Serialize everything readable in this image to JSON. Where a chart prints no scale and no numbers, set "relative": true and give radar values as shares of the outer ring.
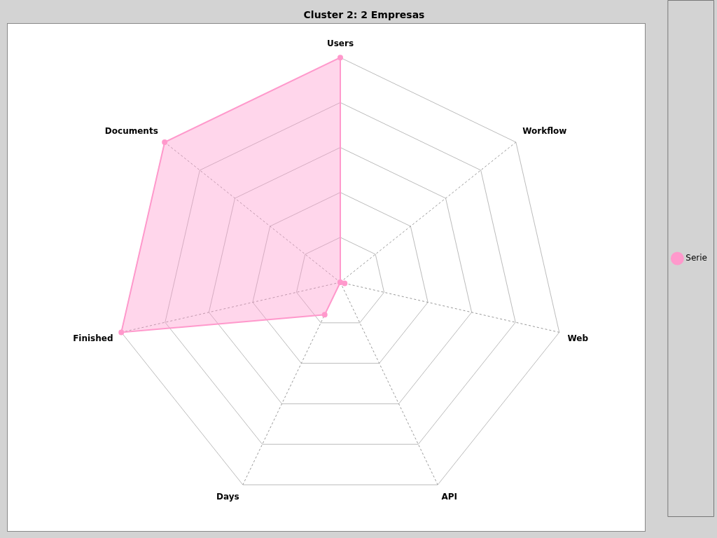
{
  "chart_data": {
    "type": "radar",
    "title": "Cluster 2: 2 Empresas",
    "relative": true,
    "categories": [
      "Users",
      "Workflow",
      "Web",
      "API",
      "Days",
      "Finished",
      "Documents"
    ],
    "series": [
      {
        "name": "Serie",
        "color": "#ff99cc",
        "values": [
          1,
          0,
          0.02,
          0,
          0.16,
          1,
          1
        ]
      }
    ],
    "grid": true,
    "legend": "right",
    "marker": "circle"
  }
}
